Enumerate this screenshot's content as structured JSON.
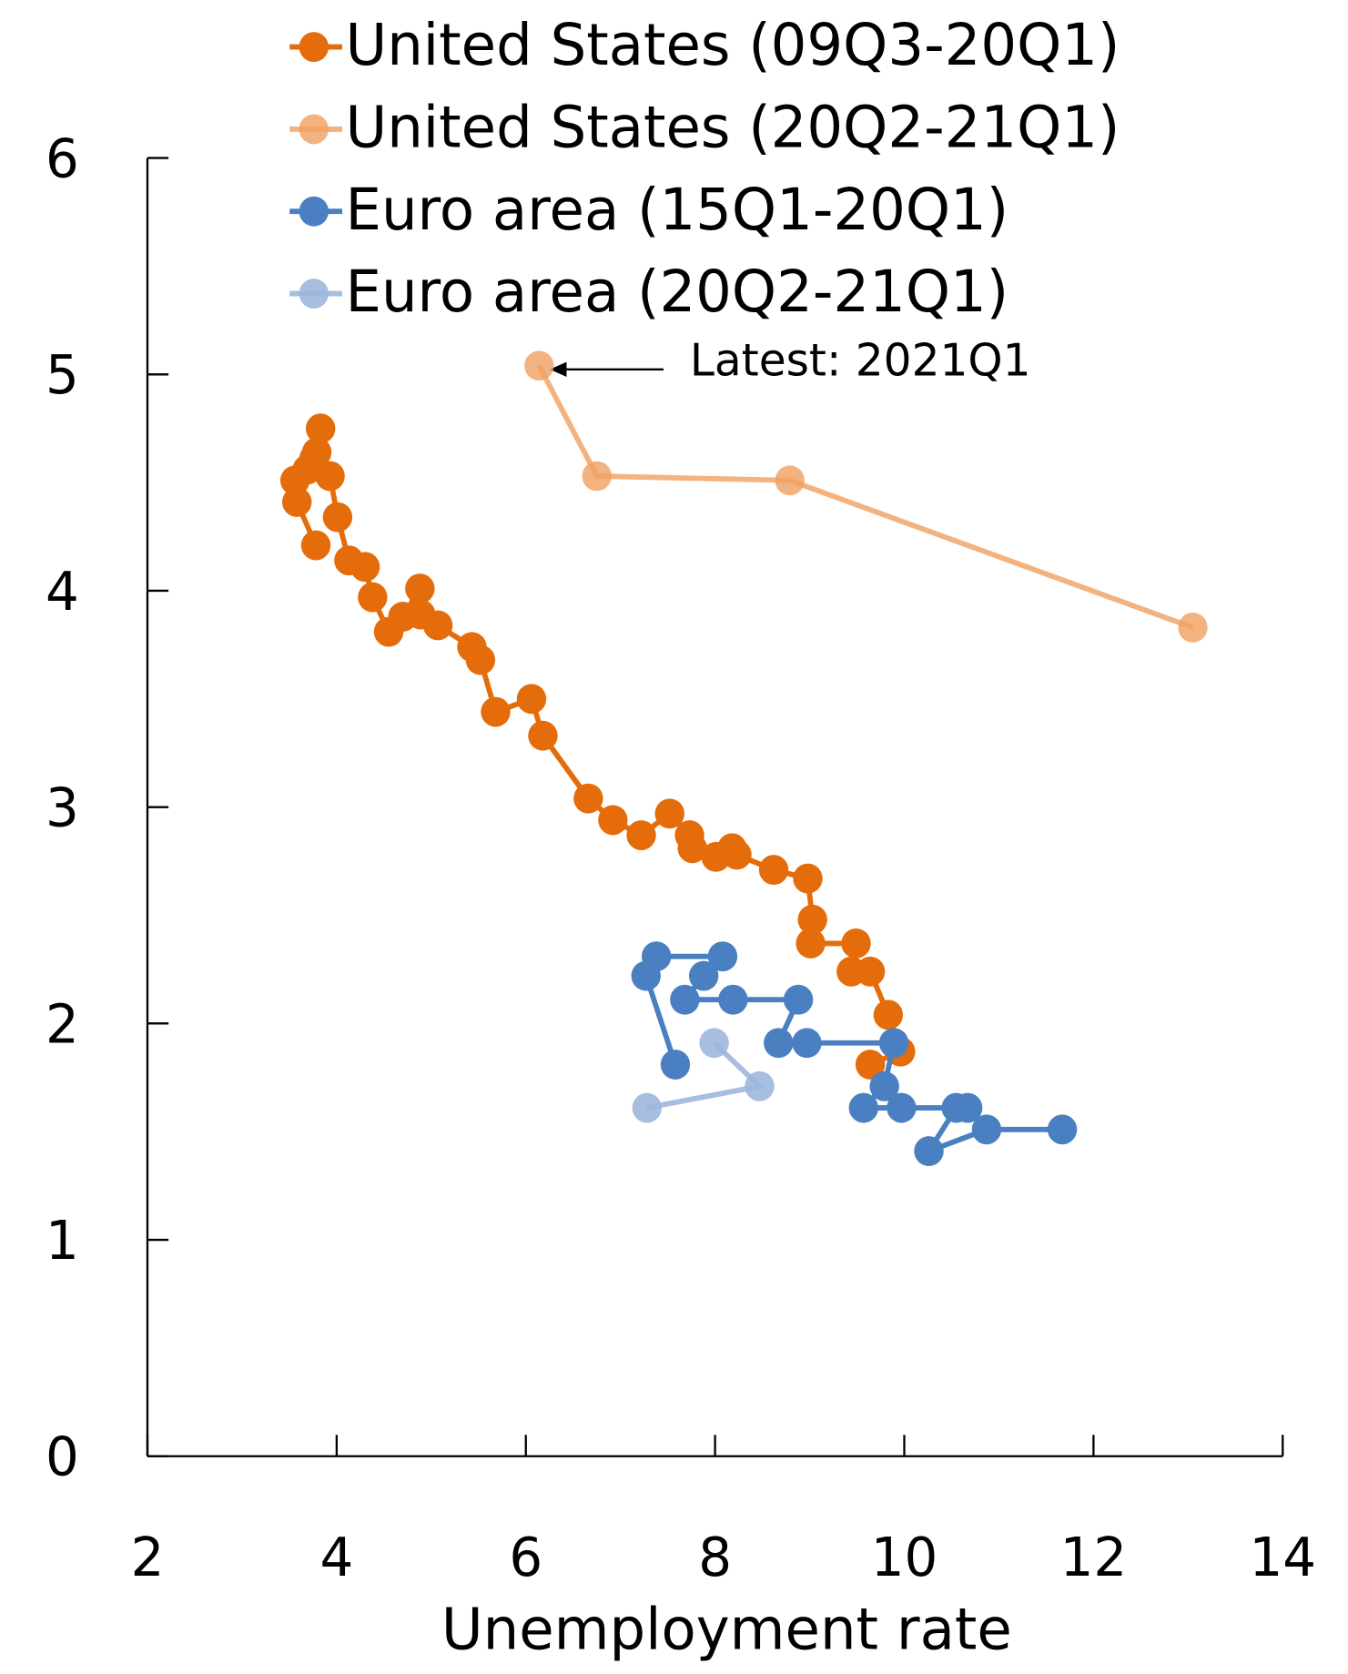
{
  "chart_data": {
    "type": "scatter",
    "x_label": "Unemployment rate",
    "xlim": [
      2,
      14
    ],
    "xticks": [
      2,
      4,
      6,
      8,
      10,
      12,
      14
    ],
    "ylim": [
      0,
      6
    ],
    "yticks": [
      0,
      1,
      2,
      3,
      4,
      5,
      6
    ],
    "annotation": "Latest: 2021Q1",
    "series": [
      {
        "name": "United States (09Q3-20Q1)",
        "color": "#e46c0a",
        "opacity": 1,
        "x": [
          9.64,
          9.96,
          9.83,
          9.64,
          9.44,
          9.49,
          9.01,
          9.03,
          8.98,
          8.62,
          8.23,
          8.18,
          8.01,
          7.76,
          7.73,
          7.52,
          7.22,
          6.92,
          6.66,
          6.18,
          6.06,
          5.68,
          5.52,
          5.43,
          5.07,
          4.89,
          4.88,
          4.7,
          4.55,
          4.38,
          4.3,
          4.13,
          4.01,
          3.93,
          3.79,
          3.83,
          3.76,
          3.69,
          3.56,
          3.58,
          3.78
        ],
        "y": [
          1.81,
          1.87,
          2.04,
          2.24,
          2.24,
          2.37,
          2.37,
          2.48,
          2.67,
          2.71,
          2.78,
          2.81,
          2.77,
          2.81,
          2.87,
          2.97,
          2.87,
          2.94,
          3.04,
          3.33,
          3.5,
          3.44,
          3.68,
          3.74,
          3.84,
          3.89,
          4.01,
          3.88,
          3.81,
          3.97,
          4.11,
          4.14,
          4.34,
          4.53,
          4.64,
          4.75,
          4.61,
          4.56,
          4.51,
          4.41,
          4.21
        ]
      },
      {
        "name": "United States (20Q2-21Q1)",
        "color": "#f0a060",
        "opacity": 0.8,
        "x": [
          13.05,
          8.79,
          6.75,
          6.14
        ],
        "y": [
          3.83,
          4.51,
          4.53,
          5.04
        ]
      },
      {
        "name": "Euro area (15Q1-20Q1)",
        "color": "#4a7fc1",
        "opacity": 1,
        "x": [
          11.67,
          10.87,
          10.26,
          10.55,
          10.67,
          9.97,
          9.57,
          9.79,
          9.89,
          8.97,
          8.67,
          8.88,
          8.19,
          7.68,
          7.88,
          8.08,
          7.38,
          7.27,
          7.58
        ],
        "y": [
          1.51,
          1.51,
          1.41,
          1.61,
          1.61,
          1.61,
          1.61,
          1.71,
          1.91,
          1.91,
          1.91,
          2.11,
          2.11,
          2.11,
          2.22,
          2.31,
          2.31,
          2.22,
          1.81
        ]
      },
      {
        "name": "Euro area (20Q2-21Q1)",
        "color": "#9db7dd",
        "opacity": 0.9,
        "x": [
          7.99,
          8.47,
          7.28
        ],
        "y": [
          1.91,
          1.71,
          1.61
        ]
      }
    ]
  }
}
